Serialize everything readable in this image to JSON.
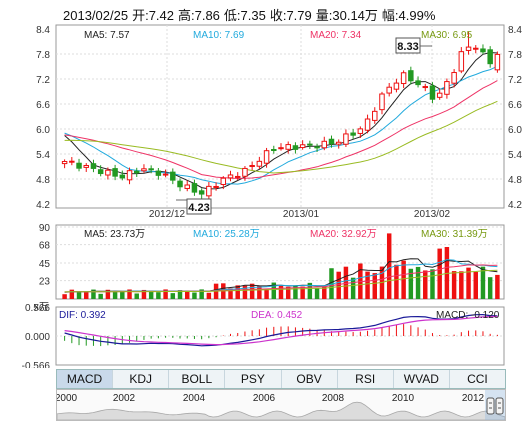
{
  "header": {
    "date": "2013/02/25",
    "open": "开:7.42",
    "high": "高:7.86",
    "low": "低:7.35",
    "close": "收:7.79",
    "volume": "量:30.14万",
    "change": "幅:4.99%"
  },
  "colors": {
    "up": "#ee1111",
    "down": "#229922",
    "ma5": "#222222",
    "ma10": "#22aadd",
    "ma20": "#ee3366",
    "ma30": "#99bb22",
    "macd_line": "#1a1a99",
    "dea_line": "#cc33cc",
    "grid": "#dddddd"
  },
  "price_panel": {
    "legend": {
      "ma5": "MA5: 7.57",
      "ma10": "MA10: 7.69",
      "ma20": "MA20: 7.34",
      "ma30": "MA30: 6.95"
    },
    "high_label": "8.33",
    "low_label": "4.23",
    "x_labels": [
      "2012/12",
      "2013/01",
      "2013/02"
    ]
  },
  "volume_panel": {
    "legend": {
      "ma5": "MA5: 23.73万",
      "ma10": "MA10: 25.28万",
      "ma20": "MA20: 32.92万",
      "ma30": "MA30: 31.39万"
    },
    "unit_label": "x万"
  },
  "macd_panel": {
    "dif": "DIF: 0.392",
    "dea": "DEA: 0.452",
    "macd": "MACD: -0.120"
  },
  "tabs": [
    "MACD",
    "KDJ",
    "BOLL",
    "PSY",
    "OBV",
    "RSI",
    "WVAD",
    "CCI"
  ],
  "active_tab": "MACD",
  "timeline": {
    "years": [
      "2000",
      "2002",
      "2004",
      "2006",
      "2008",
      "2010",
      "2012"
    ]
  },
  "chart_data": [
    {
      "type": "candlestick",
      "title": "",
      "ylim": [
        4.2,
        8.4
      ],
      "yticks": [
        4.2,
        4.8,
        5.4,
        6.0,
        6.6,
        7.2,
        7.8,
        8.4
      ],
      "x_labels": [
        "2012/12",
        "2013/01",
        "2013/02"
      ],
      "annotations": [
        {
          "label": "8.33",
          "value": 8.33
        },
        {
          "label": "4.23",
          "value": 4.23
        }
      ],
      "ma_lines": [
        "MA5",
        "MA10",
        "MA20",
        "MA30"
      ],
      "final_ma": {
        "MA5": 7.57,
        "MA10": 7.69,
        "MA20": 7.34,
        "MA30": 6.95
      },
      "last_bar": {
        "date": "2013/02/25",
        "open": 7.42,
        "high": 7.86,
        "low": 7.35,
        "close": 7.79
      }
    },
    {
      "type": "bar",
      "title": "",
      "ylim": [
        0,
        90
      ],
      "yticks": [
        23,
        45,
        68,
        90
      ],
      "unit": "万",
      "final_ma": {
        "MA5": 23.73,
        "MA10": 25.28,
        "MA20": 32.92,
        "MA30": 31.39
      },
      "last_volume": 30.14
    },
    {
      "type": "bar",
      "title": "",
      "ylim": [
        -0.566,
        0.566
      ],
      "yticks": [
        0.566,
        0.0,
        -0.566
      ],
      "final": {
        "DIF": 0.392,
        "DEA": 0.452,
        "MACD": -0.12
      }
    }
  ]
}
